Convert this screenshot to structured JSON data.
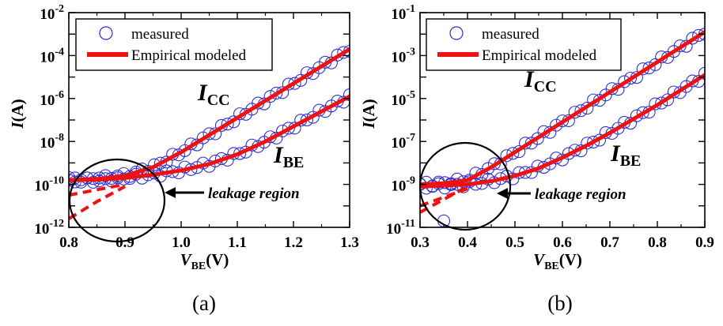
{
  "chart_data": [
    {
      "panel": "a",
      "caption": "(a)",
      "type": "scatter",
      "xlabel": "V",
      "xlabel_sub": "BE",
      "xlabel_unit": "(V)",
      "ylabel": "I",
      "ylabel_unit": "(A)",
      "xlim": [
        0.8,
        1.3
      ],
      "ylim_log10": [
        -12,
        -2
      ],
      "x_ticks": [
        "0.8",
        "0.9",
        "1.0",
        "1.1",
        "1.2",
        "1.3"
      ],
      "y_ticks": [
        {
          "exp": -12,
          "label": "10",
          "sup": "-12"
        },
        {
          "exp": -10,
          "label": "10",
          "sup": "-10"
        },
        {
          "exp": -8,
          "label": "10",
          "sup": "-8"
        },
        {
          "exp": -6,
          "label": "10",
          "sup": "-6"
        },
        {
          "exp": -4,
          "label": "10",
          "sup": "-4"
        },
        {
          "exp": -2,
          "label": "10",
          "sup": "-2"
        }
      ],
      "legend": [
        {
          "label": "measured",
          "marker": "circle"
        },
        {
          "label": "Empirical modeled",
          "marker": "line"
        }
      ],
      "curve_labels": [
        {
          "main": "I",
          "sub": "CC"
        },
        {
          "main": "I",
          "sub": "BE"
        }
      ],
      "annotation": "leakage region",
      "series": [
        {
          "id": "ICC",
          "x": [
            0.8,
            0.85,
            0.9,
            0.95,
            1.0,
            1.05,
            1.1,
            1.15,
            1.2,
            1.25,
            1.3
          ],
          "log10_I": [
            -9.8,
            -9.75,
            -9.6,
            -9.2,
            -8.5,
            -7.7,
            -6.9,
            -6.1,
            -5.3,
            -4.5,
            -3.7
          ]
        },
        {
          "id": "IBE",
          "x": [
            0.8,
            0.85,
            0.9,
            0.95,
            1.0,
            1.05,
            1.1,
            1.15,
            1.2,
            1.25,
            1.3
          ],
          "log10_I": [
            -9.8,
            -9.78,
            -9.7,
            -9.55,
            -9.35,
            -9.05,
            -8.6,
            -8.0,
            -7.3,
            -6.6,
            -5.9
          ]
        },
        {
          "id": "ICC_extrapolated",
          "x": [
            0.8,
            0.85,
            0.9
          ],
          "log10_I": [
            -11.6,
            -10.8,
            -10.1
          ]
        },
        {
          "id": "IBE_extrapolated",
          "x": [
            0.8,
            0.85,
            0.9
          ],
          "log10_I": [
            -10.5,
            -10.25,
            -10.0
          ]
        }
      ]
    },
    {
      "panel": "b",
      "caption": "(b)",
      "type": "scatter",
      "xlabel": "V",
      "xlabel_sub": "BE",
      "xlabel_unit": "(V)",
      "ylabel": "I",
      "ylabel_unit": "(A)",
      "xlim": [
        0.3,
        0.9
      ],
      "ylim_log10": [
        -11,
        -1
      ],
      "x_ticks": [
        "0.3",
        "0.4",
        "0.5",
        "0.6",
        "0.7",
        "0.8",
        "0.9"
      ],
      "y_ticks": [
        {
          "exp": -11,
          "label": "10",
          "sup": "-11"
        },
        {
          "exp": -9,
          "label": "10",
          "sup": "-9"
        },
        {
          "exp": -7,
          "label": "10",
          "sup": "-7"
        },
        {
          "exp": -5,
          "label": "10",
          "sup": "-5"
        },
        {
          "exp": -3,
          "label": "10",
          "sup": "-3"
        },
        {
          "exp": -1,
          "label": "10",
          "sup": "-1"
        }
      ],
      "legend": [
        {
          "label": "measured",
          "marker": "circle"
        },
        {
          "label": "Empirical modeled",
          "marker": "line"
        }
      ],
      "curve_labels": [
        {
          "main": "I",
          "sub": "CC"
        },
        {
          "main": "I",
          "sub": "BE"
        }
      ],
      "annotation": "leakage region",
      "series": [
        {
          "id": "ICC",
          "x": [
            0.3,
            0.35,
            0.4,
            0.45,
            0.5,
            0.55,
            0.6,
            0.65,
            0.7,
            0.75,
            0.8,
            0.85,
            0.9
          ],
          "log10_I": [
            -9.0,
            -8.95,
            -8.8,
            -8.2,
            -7.5,
            -6.8,
            -6.1,
            -5.4,
            -4.7,
            -4.0,
            -3.3,
            -2.6,
            -1.9
          ]
        },
        {
          "id": "IBE",
          "x": [
            0.3,
            0.35,
            0.4,
            0.45,
            0.5,
            0.55,
            0.6,
            0.65,
            0.7,
            0.75,
            0.8,
            0.85,
            0.9
          ],
          "log10_I": [
            -9.1,
            -9.05,
            -9.0,
            -8.85,
            -8.6,
            -8.25,
            -7.75,
            -7.2,
            -6.6,
            -5.95,
            -5.3,
            -4.6,
            -3.9
          ]
        },
        {
          "id": "ICC_extrapolated",
          "x": [
            0.3,
            0.35,
            0.4
          ],
          "log10_I": [
            -10.3,
            -9.7,
            -9.1
          ]
        },
        {
          "id": "IBE_extrapolated",
          "x": [
            0.3,
            0.35,
            0.4
          ],
          "log10_I": [
            -10.0,
            -9.6,
            -9.2
          ]
        }
      ],
      "outliers": [
        {
          "x": 0.35,
          "log10_I": -10.7
        }
      ]
    }
  ],
  "colors": {
    "measured": "#2f2fd0",
    "model": "#ee1111",
    "axis": "#000000"
  }
}
